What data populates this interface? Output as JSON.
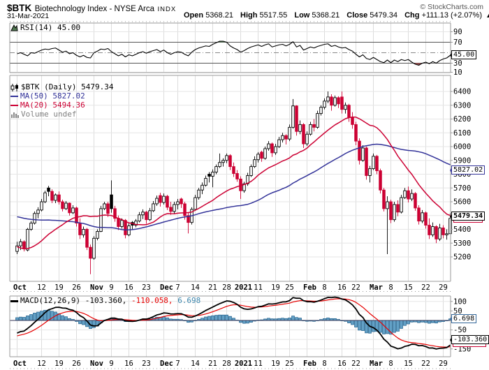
{
  "header": {
    "symbol": "$BTK",
    "title": "Biotechnology Index - NYSE Arca",
    "exchange_tag": "INDX",
    "copyright": "© StockCharts.com",
    "date": "31-Mar-2021",
    "ohlc": {
      "open_label": "Open",
      "open": "5368.21",
      "high_label": "High",
      "high": "5517.55",
      "low_label": "Low",
      "low": "5368.21",
      "close_label": "Close",
      "close": "5479.34",
      "chg_label": "Chg",
      "chg": "+111.13 (+2.07%)"
    }
  },
  "rsi_panel": {
    "label": "RSI(14) 45.00",
    "value_box": "45.00",
    "yticks": [
      "90",
      "70",
      "30",
      "10"
    ]
  },
  "main_panel": {
    "legend": {
      "symbol_line": "$BTK (Daily) 5479.34",
      "ma50_line": "MA(50) 5827.02",
      "ma20_line": "MA(20) 5494.36",
      "volume_line": "Volume undef"
    },
    "ma50_box": "5827.02",
    "last_price_box": "5479.34",
    "yticks": [
      "6400",
      "6300",
      "6200",
      "6100",
      "6000",
      "5900",
      "5800",
      "5700",
      "5600",
      "5500",
      "5400",
      "5300",
      "5200"
    ]
  },
  "macd_panel": {
    "label_name": "MACD(12,26,9)",
    "macd_value": "-103.360,",
    "signal_value": "-110.058,",
    "hist_value": "6.698",
    "hist_box": "6.698",
    "macd_box": "-103.360",
    "yticks": [
      {
        "v": 100,
        "t": "100"
      },
      {
        "v": 50,
        "t": "50"
      },
      {
        "v": -50,
        "t": "-50"
      },
      {
        "v": -150,
        "t": "-150"
      }
    ]
  },
  "x_labels": [
    {
      "t": "Oct",
      "i": 0,
      "b": 1
    },
    {
      "t": "12",
      "i": 7
    },
    {
      "t": "19",
      "i": 12
    },
    {
      "t": "26",
      "i": 17
    },
    {
      "t": "Nov",
      "i": 22,
      "b": 1
    },
    {
      "t": "9",
      "i": 27
    },
    {
      "t": "16",
      "i": 32
    },
    {
      "t": "23",
      "i": 37
    },
    {
      "t": "Dec",
      "i": 42,
      "b": 1
    },
    {
      "t": "7",
      "i": 46
    },
    {
      "t": "14",
      "i": 51
    },
    {
      "t": "21",
      "i": 56
    },
    {
      "t": "28",
      "i": 60
    },
    {
      "t": "2021",
      "i": 64,
      "b": 1
    },
    {
      "t": "11",
      "i": 69
    },
    {
      "t": "19",
      "i": 74
    },
    {
      "t": "25",
      "i": 78
    },
    {
      "t": "Feb",
      "i": 83,
      "b": 1
    },
    {
      "t": "8",
      "i": 88
    },
    {
      "t": "16",
      "i": 93
    },
    {
      "t": "22",
      "i": 97
    },
    {
      "t": "Mar",
      "i": 102,
      "b": 1
    },
    {
      "t": "8",
      "i": 107
    },
    {
      "t": "15",
      "i": 112
    },
    {
      "t": "22",
      "i": 117
    },
    {
      "t": "29",
      "i": 122
    }
  ],
  "colors": {
    "down_red": "#cc0033",
    "up_outline": "#000000",
    "ma50_blue": "#333399",
    "ma20_red": "#cc0033",
    "signal_red": "#e60000",
    "macd_black": "#000000",
    "hist_fill": "#62a0c6",
    "hist_stroke": "#1f5f8b",
    "rsi_over_fill": "#557d55",
    "rsi_under_fill": "#a05050",
    "grid_light": "#e6e6e6",
    "grid_vert": "#dcdcdc",
    "panel_border": "#999999",
    "legend_blue_text": "#3c86ad",
    "volume_gray": "#808080"
  },
  "chart_data": [
    {
      "panel": "rsi",
      "type": "line",
      "indicator": "RSI(14)",
      "last": 45.0,
      "overbought": 70,
      "midline": 50,
      "oversold": 30,
      "ylim": [
        10,
        90
      ],
      "values": [
        48,
        50,
        47,
        44,
        50,
        49,
        52,
        55,
        57,
        56,
        58,
        59,
        55,
        51,
        53,
        48,
        50,
        45,
        42,
        45,
        41,
        40,
        50,
        53,
        57,
        56,
        58,
        52,
        48,
        44,
        47,
        42,
        46,
        44,
        47,
        50,
        52,
        49,
        52,
        54,
        56,
        52,
        55,
        50,
        47,
        50,
        52,
        51,
        47,
        44,
        51,
        56,
        59,
        61,
        63,
        62,
        66,
        69,
        72,
        72,
        70,
        63,
        59,
        56,
        51,
        54,
        58,
        61,
        63,
        65,
        62,
        65,
        67,
        61,
        63,
        65,
        66,
        63,
        66,
        71,
        61,
        64,
        55,
        58,
        61,
        59,
        62,
        64,
        66,
        67,
        62,
        64,
        61,
        59,
        60,
        56,
        53,
        47,
        42,
        46,
        39,
        37,
        41,
        37,
        33,
        31,
        36,
        31,
        36,
        33,
        37,
        35,
        37,
        32,
        28,
        26,
        30,
        32,
        29,
        33,
        30,
        35,
        38,
        40,
        45
      ]
    },
    {
      "panel": "price",
      "type": "candlestick",
      "symbol": "$BTK",
      "timeframe": "Daily",
      "last_close": 5479.34,
      "ma50_last": 5827.02,
      "ma20_last": 5494.36,
      "ylim": [
        5050,
        6480
      ],
      "ytick_step": 100,
      "prehistory_closes": [
        5570,
        5590,
        5610,
        5600,
        5620,
        5640,
        5660,
        5650,
        5670,
        5690,
        5700,
        5680,
        5660,
        5670,
        5650,
        5630,
        5640,
        5620,
        5600,
        5610,
        5630,
        5650,
        5640,
        5620,
        5600,
        5580,
        5560,
        5640,
        5700,
        5720,
        5480,
        5400,
        5350,
        5300,
        5260,
        5220,
        5200,
        5180,
        5220,
        5250,
        5280,
        5260,
        5230,
        5210,
        5240,
        5270,
        5300,
        5280,
        5260
      ],
      "candles": [
        [
          5240,
          5310,
          5220,
          5280
        ],
        [
          5280,
          5330,
          5250,
          5310
        ],
        [
          5310,
          5320,
          5240,
          5265
        ],
        [
          5250,
          5410,
          5240,
          5400
        ],
        [
          5400,
          5460,
          5390,
          5445
        ],
        [
          5445,
          5530,
          5435,
          5515
        ],
        [
          5515,
          5560,
          5480,
          5540
        ],
        [
          5540,
          5620,
          5530,
          5600
        ],
        [
          5600,
          5680,
          5590,
          5665
        ],
        [
          5700,
          5715,
          5640,
          5675
        ],
        [
          5675,
          5690,
          5590,
          5610
        ],
        [
          5610,
          5660,
          5590,
          5650
        ],
        [
          5650,
          5675,
          5580,
          5600
        ],
        [
          5600,
          5615,
          5530,
          5550
        ],
        [
          5550,
          5605,
          5540,
          5590
        ],
        [
          5590,
          5595,
          5500,
          5520
        ],
        [
          5520,
          5575,
          5510,
          5555
        ],
        [
          5555,
          5565,
          5420,
          5445
        ],
        [
          5445,
          5480,
          5330,
          5360
        ],
        [
          5360,
          5420,
          5340,
          5400
        ],
        [
          5400,
          5410,
          5250,
          5270
        ],
        [
          5270,
          5290,
          5075,
          5190
        ],
        [
          5190,
          5350,
          5180,
          5335
        ],
        [
          5335,
          5400,
          5320,
          5385
        ],
        [
          5385,
          5570,
          5380,
          5550
        ],
        [
          5550,
          5600,
          5540,
          5585
        ],
        [
          5585,
          5600,
          5490,
          5515
        ],
        [
          5650,
          5755,
          5520,
          5550
        ],
        [
          5550,
          5570,
          5455,
          5480
        ],
        [
          5480,
          5500,
          5395,
          5420
        ],
        [
          5420,
          5480,
          5405,
          5465
        ],
        [
          5465,
          5475,
          5335,
          5360
        ],
        [
          5360,
          5445,
          5350,
          5425
        ],
        [
          5450,
          5460,
          5400,
          5430
        ],
        [
          5430,
          5475,
          5415,
          5460
        ],
        [
          5460,
          5525,
          5450,
          5505
        ],
        [
          5505,
          5545,
          5475,
          5525
        ],
        [
          5525,
          5535,
          5440,
          5470
        ],
        [
          5470,
          5555,
          5460,
          5535
        ],
        [
          5535,
          5605,
          5525,
          5585
        ],
        [
          5585,
          5645,
          5570,
          5625
        ],
        [
          5645,
          5665,
          5565,
          5595
        ],
        [
          5595,
          5660,
          5580,
          5640
        ],
        [
          5640,
          5650,
          5540,
          5560
        ],
        [
          5560,
          5600,
          5505,
          5530
        ],
        [
          5530,
          5600,
          5515,
          5580
        ],
        [
          5580,
          5620,
          5545,
          5600
        ],
        [
          5620,
          5630,
          5555,
          5585
        ],
        [
          5585,
          5600,
          5470,
          5500
        ],
        [
          5500,
          5520,
          5370,
          5450
        ],
        [
          5450,
          5560,
          5435,
          5545
        ],
        [
          5545,
          5650,
          5535,
          5630
        ],
        [
          5630,
          5700,
          5615,
          5685
        ],
        [
          5685,
          5740,
          5655,
          5720
        ],
        [
          5720,
          5790,
          5710,
          5770
        ],
        [
          5800,
          5815,
          5740,
          5785
        ],
        [
          5785,
          5835,
          5705,
          5815
        ],
        [
          5815,
          5870,
          5800,
          5855
        ],
        [
          5855,
          5950,
          5845,
          5885
        ],
        [
          5885,
          5915,
          5855,
          5900
        ],
        [
          5900,
          5950,
          5880,
          5935
        ],
        [
          5935,
          5945,
          5830,
          5855
        ],
        [
          5855,
          5885,
          5780,
          5805
        ],
        [
          5805,
          5830,
          5745,
          5765
        ],
        [
          5765,
          5785,
          5620,
          5680
        ],
        [
          5680,
          5745,
          5665,
          5730
        ],
        [
          5730,
          5810,
          5715,
          5790
        ],
        [
          5790,
          5870,
          5780,
          5855
        ],
        [
          5855,
          5930,
          5845,
          5905
        ],
        [
          5905,
          5960,
          5885,
          5945
        ],
        [
          5960,
          5970,
          5890,
          5915
        ],
        [
          5915,
          6000,
          5905,
          5985
        ],
        [
          5985,
          6040,
          5970,
          6020
        ],
        [
          6020,
          6030,
          5925,
          5955
        ],
        [
          5955,
          6020,
          5940,
          6000
        ],
        [
          6000,
          6070,
          5990,
          6050
        ],
        [
          6050,
          6100,
          6030,
          6080
        ],
        [
          6080,
          6090,
          6015,
          6055
        ],
        [
          6055,
          6160,
          6040,
          6140
        ],
        [
          6140,
          6345,
          6130,
          6295
        ],
        [
          6295,
          6300,
          6080,
          6110
        ],
        [
          6110,
          6190,
          6090,
          6160
        ],
        [
          6160,
          6170,
          5990,
          6020
        ],
        [
          6020,
          6110,
          6005,
          6090
        ],
        [
          6090,
          6180,
          6080,
          6160
        ],
        [
          6160,
          6200,
          6110,
          6140
        ],
        [
          6140,
          6260,
          6130,
          6240
        ],
        [
          6240,
          6300,
          6225,
          6285
        ],
        [
          6285,
          6350,
          6270,
          6330
        ],
        [
          6330,
          6400,
          6315,
          6360
        ],
        [
          6360,
          6380,
          6260,
          6300
        ],
        [
          6300,
          6370,
          6290,
          6355
        ],
        [
          6355,
          6365,
          6280,
          6310
        ],
        [
          6360,
          6400,
          6240,
          6270
        ],
        [
          6270,
          6320,
          6240,
          6300
        ],
        [
          6300,
          6310,
          6180,
          6210
        ],
        [
          6210,
          6250,
          6130,
          6160
        ],
        [
          6160,
          6180,
          6010,
          6040
        ],
        [
          6040,
          6060,
          5870,
          5900
        ],
        [
          5900,
          6010,
          5890,
          5990
        ],
        [
          5990,
          6000,
          5760,
          5790
        ],
        [
          5790,
          5860,
          5740,
          5840
        ],
        [
          5840,
          5950,
          5830,
          5930
        ],
        [
          5930,
          5940,
          5800,
          5825
        ],
        [
          5825,
          5840,
          5660,
          5685
        ],
        [
          5685,
          5700,
          5530,
          5550
        ],
        [
          5550,
          5640,
          5220,
          5600
        ],
        [
          5600,
          5615,
          5445,
          5470
        ],
        [
          5470,
          5600,
          5455,
          5580
        ],
        [
          5580,
          5610,
          5495,
          5525
        ],
        [
          5525,
          5650,
          5515,
          5630
        ],
        [
          5630,
          5700,
          5620,
          5680
        ],
        [
          5680,
          5710,
          5595,
          5620
        ],
        [
          5620,
          5690,
          5605,
          5660
        ],
        [
          5660,
          5670,
          5535,
          5555
        ],
        [
          5555,
          5575,
          5435,
          5460
        ],
        [
          5460,
          5540,
          5445,
          5520
        ],
        [
          5520,
          5530,
          5405,
          5430
        ],
        [
          5430,
          5480,
          5330,
          5360
        ],
        [
          5360,
          5450,
          5345,
          5420
        ],
        [
          5420,
          5430,
          5300,
          5330
        ],
        [
          5330,
          5440,
          5315,
          5410
        ],
        [
          5410,
          5430,
          5335,
          5360
        ],
        [
          5360,
          5400,
          5325,
          5368
        ],
        [
          5368.21,
          5517.55,
          5368.21,
          5479.34
        ]
      ]
    },
    {
      "panel": "macd",
      "type": "line+histogram",
      "indicator": "MACD(12,26,9)",
      "macd_last": -103.36,
      "signal_last": -110.058,
      "hist_last": 6.698,
      "ylim": [
        -180,
        135
      ],
      "derived_from": "price closes (EMA12-EMA26, signal EMA9)"
    }
  ]
}
